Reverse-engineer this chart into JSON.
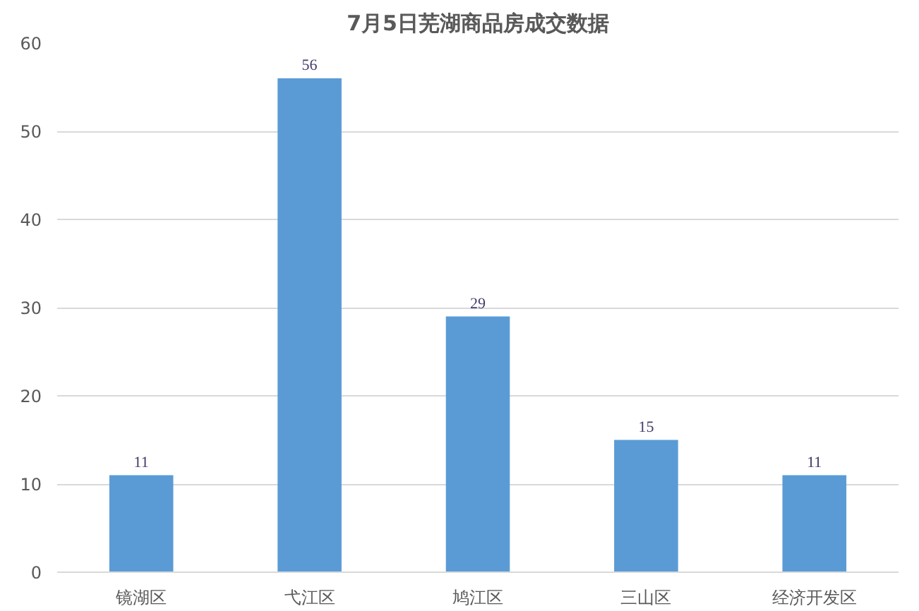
{
  "chart_data": {
    "type": "bar",
    "title": "7月5日芜湖商品房成交数据",
    "categories": [
      "镜湖区",
      "弋江区",
      "鸠江区",
      "三山区",
      "经济开发区"
    ],
    "values": [
      11,
      56,
      29,
      15,
      11
    ],
    "color": "#5b9bd5",
    "ylim": [
      0,
      60
    ],
    "yticks": [
      0,
      10,
      20,
      30,
      40,
      50,
      60
    ],
    "grid": "y",
    "data_labels": true
  }
}
